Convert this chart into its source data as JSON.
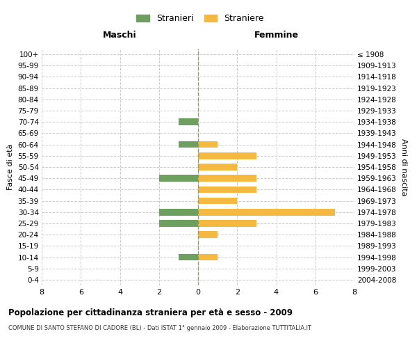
{
  "age_groups": [
    "100+",
    "95-99",
    "90-94",
    "85-89",
    "80-84",
    "75-79",
    "70-74",
    "65-69",
    "60-64",
    "55-59",
    "50-54",
    "45-49",
    "40-44",
    "35-39",
    "30-34",
    "25-29",
    "20-24",
    "15-19",
    "10-14",
    "5-9",
    "0-4"
  ],
  "birth_years": [
    "≤ 1908",
    "1909-1913",
    "1914-1918",
    "1919-1923",
    "1924-1928",
    "1929-1933",
    "1934-1938",
    "1939-1943",
    "1944-1948",
    "1949-1953",
    "1954-1958",
    "1959-1963",
    "1964-1968",
    "1969-1973",
    "1974-1978",
    "1979-1983",
    "1984-1988",
    "1989-1993",
    "1994-1998",
    "1999-2003",
    "2004-2008"
  ],
  "maschi": [
    0,
    0,
    0,
    0,
    0,
    0,
    1,
    0,
    1,
    0,
    0,
    2,
    0,
    0,
    2,
    2,
    0,
    0,
    1,
    0,
    0
  ],
  "femmine": [
    0,
    0,
    0,
    0,
    0,
    0,
    0,
    0,
    1,
    3,
    2,
    3,
    3,
    2,
    7,
    3,
    1,
    0,
    1,
    0,
    0
  ],
  "color_maschi": "#6d9f5e",
  "color_femmine": "#f5b942",
  "title": "Popolazione per cittadinanza straniera per età e sesso - 2009",
  "subtitle": "COMUNE DI SANTO STEFANO DI CADORE (BL) - Dati ISTAT 1° gennaio 2009 - Elaborazione TUTTITALIA.IT",
  "xlabel_left": "Maschi",
  "xlabel_right": "Femmine",
  "ylabel_left": "Fasce di età",
  "ylabel_right": "Anni di nascita",
  "legend_maschi": "Stranieri",
  "legend_femmine": "Straniere",
  "xlim": 8,
  "background_color": "#ffffff",
  "grid_color": "#cccccc"
}
